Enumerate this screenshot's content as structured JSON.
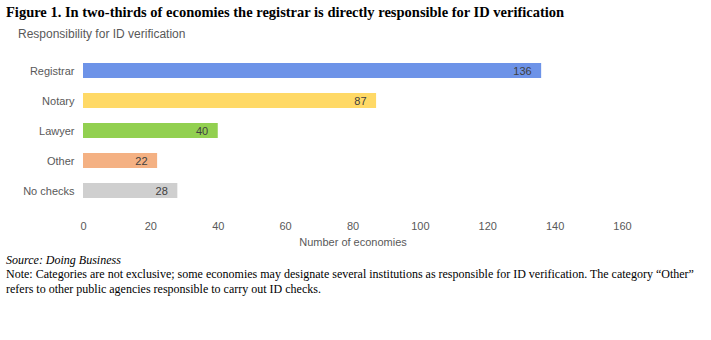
{
  "chart_data": {
    "type": "bar",
    "orientation": "horizontal",
    "title": "Figure 1. In two-thirds of economies the registrar is directly responsible for ID verification",
    "subtitle": "Responsibility for ID verification",
    "x_label": "Number of economies",
    "categories": [
      "Registrar",
      "Notary",
      "Lawyer",
      "Other",
      "No checks"
    ],
    "values": [
      136,
      87,
      40,
      22,
      28
    ],
    "colors": [
      "#6d93e8",
      "#ffd966",
      "#92d050",
      "#f4b183",
      "#cfcfcf"
    ],
    "xlim": [
      0,
      160
    ],
    "xticks": [
      0,
      20,
      40,
      60,
      80,
      100,
      120,
      140,
      160
    ],
    "grid": false,
    "data_labels": true,
    "annotations": [
      "Source: Doing Business",
      "Note: Categories are not exclusive; some economies may designate several institutions as responsible for ID verification. The category “Other” refers to other public agencies responsible to carry out ID checks."
    ]
  }
}
